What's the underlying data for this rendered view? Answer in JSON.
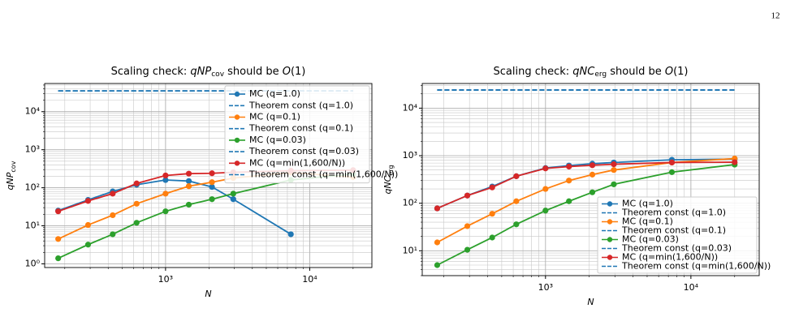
{
  "page_number": "12",
  "chart_data": [
    {
      "type": "line",
      "title_parts": [
        "Scaling check: ",
        "qNP",
        "cov",
        " should be ",
        "O",
        "(1)"
      ],
      "xlabel": "N",
      "ylabel_parts": [
        "qNP",
        "cov"
      ],
      "log": true,
      "grid": true,
      "legend": "upper right",
      "x": [
        180,
        290,
        430,
        630,
        1000,
        1450,
        2100,
        2950,
        7400,
        20000
      ],
      "xlim": [
        145,
        27000
      ],
      "xticks": [
        {
          "value": 1000,
          "label": "10³"
        },
        {
          "value": 10000,
          "label": "10⁴"
        }
      ],
      "xminor": [
        200,
        300,
        400,
        500,
        600,
        700,
        800,
        900,
        2000,
        3000,
        4000,
        5000,
        6000,
        7000,
        8000,
        9000,
        20000
      ],
      "ylim": [
        0.8,
        55000
      ],
      "yticks": [
        {
          "value": 1,
          "label": "10⁰"
        },
        {
          "value": 10,
          "label": "10¹"
        },
        {
          "value": 100,
          "label": "10²"
        },
        {
          "value": 1000,
          "label": "10³"
        },
        {
          "value": 10000,
          "label": "10⁴"
        }
      ],
      "yminor": [
        2,
        3,
        4,
        5,
        6,
        7,
        8,
        9,
        20,
        30,
        40,
        50,
        60,
        70,
        80,
        90,
        200,
        300,
        400,
        500,
        600,
        700,
        800,
        900,
        2000,
        3000,
        4000,
        5000,
        6000,
        7000,
        8000,
        9000,
        20000,
        30000,
        40000,
        50000
      ],
      "series": [
        {
          "name": "MC (q=1.0)",
          "color": "#1f77b4",
          "style": "solid",
          "values": [
            25,
            48,
            80,
            120,
            160,
            150,
            105,
            50,
            6,
            null
          ]
        },
        {
          "name": "Theorem const (q=1.0)",
          "color": "#1f77b4",
          "style": "dashed",
          "values": [
            35000,
            35000,
            35000,
            35000,
            35000,
            35000,
            35000,
            35000,
            35000,
            35000
          ]
        },
        {
          "name": "MC (q=0.1)",
          "color": "#ff7f0e",
          "style": "solid",
          "values": [
            4.5,
            10.5,
            19,
            38,
            70,
            110,
            140,
            180,
            250,
            190
          ]
        },
        {
          "name": "Theorem const (q=0.1)",
          "color": "#1f77b4",
          "style": "dashed",
          "values": [
            35000,
            35000,
            35000,
            35000,
            35000,
            35000,
            35000,
            35000,
            35000,
            35000
          ]
        },
        {
          "name": "MC (q=0.03)",
          "color": "#2ca02c",
          "style": "solid",
          "values": [
            1.4,
            3.2,
            6,
            12,
            24,
            36,
            50,
            70,
            160,
            230
          ]
        },
        {
          "name": "Theorem const (q=0.03)",
          "color": "#1f77b4",
          "style": "dashed",
          "values": [
            35000,
            35000,
            35000,
            35000,
            35000,
            35000,
            35000,
            35000,
            35000,
            35000
          ]
        },
        {
          "name": "MC (q=min(1,600/N))",
          "color": "#d62728",
          "style": "solid",
          "values": [
            24,
            45,
            70,
            130,
            210,
            235,
            240,
            255,
            280,
            290
          ]
        },
        {
          "name": "Theorem const (q=min(1,600/N))",
          "color": "#1f77b4",
          "style": "dashed",
          "values": [
            35000,
            35000,
            35000,
            35000,
            35000,
            35000,
            35000,
            35000,
            35000,
            35000
          ]
        }
      ]
    },
    {
      "type": "line",
      "title_parts": [
        "Scaling check: ",
        "qNC",
        "erg",
        " should be ",
        "O",
        "(1)"
      ],
      "xlabel": "N",
      "ylabel_parts": [
        "qNC",
        "erg"
      ],
      "log": true,
      "grid": true,
      "legend": "lower right",
      "x": [
        180,
        290,
        430,
        630,
        1000,
        1450,
        2100,
        2950,
        7400,
        20000
      ],
      "xlim": [
        142,
        29500
      ],
      "xticks": [
        {
          "value": 1000,
          "label": "10³"
        },
        {
          "value": 10000,
          "label": "10⁴"
        }
      ],
      "xminor": [
        200,
        300,
        400,
        500,
        600,
        700,
        800,
        900,
        2000,
        3000,
        4000,
        5000,
        6000,
        7000,
        8000,
        9000,
        20000
      ],
      "ylim": [
        3,
        33000
      ],
      "yticks": [
        {
          "value": 10,
          "label": "10¹"
        },
        {
          "value": 100,
          "label": "10²"
        },
        {
          "value": 1000,
          "label": "10³"
        },
        {
          "value": 10000,
          "label": "10⁴"
        }
      ],
      "yminor": [
        3,
        4,
        5,
        6,
        7,
        8,
        9,
        20,
        30,
        40,
        50,
        60,
        70,
        80,
        90,
        200,
        300,
        400,
        500,
        600,
        700,
        800,
        900,
        2000,
        3000,
        4000,
        5000,
        6000,
        7000,
        8000,
        9000,
        20000,
        30000
      ],
      "series": [
        {
          "name": "MC (q=1.0)",
          "color": "#1f77b4",
          "style": "solid",
          "values": [
            78,
            145,
            225,
            370,
            550,
            620,
            680,
            720,
            820,
            850
          ]
        },
        {
          "name": "Theorem const (q=1.0)",
          "color": "#1f77b4",
          "style": "dashed",
          "values": [
            24000,
            24000,
            24000,
            24000,
            24000,
            24000,
            24000,
            24000,
            24000,
            24000
          ]
        },
        {
          "name": "MC (q=0.1)",
          "color": "#ff7f0e",
          "style": "solid",
          "values": [
            15,
            33,
            60,
            110,
            200,
            300,
            400,
            500,
            720,
            870
          ]
        },
        {
          "name": "Theorem const (q=0.1)",
          "color": "#1f77b4",
          "style": "dashed",
          "values": [
            24000,
            24000,
            24000,
            24000,
            24000,
            24000,
            24000,
            24000,
            24000,
            24000
          ]
        },
        {
          "name": "MC (q=0.03)",
          "color": "#2ca02c",
          "style": "solid",
          "values": [
            5,
            10.5,
            19,
            36,
            70,
            110,
            170,
            250,
            450,
            650
          ]
        },
        {
          "name": "Theorem const (q=0.03)",
          "color": "#1f77b4",
          "style": "dashed",
          "values": [
            24000,
            24000,
            24000,
            24000,
            24000,
            24000,
            24000,
            24000,
            24000,
            24000
          ]
        },
        {
          "name": "MC (q=min(1,600/N))",
          "color": "#d62728",
          "style": "solid",
          "values": [
            78,
            145,
            215,
            370,
            540,
            590,
            630,
            660,
            720,
            730
          ]
        },
        {
          "name": "Theorem const (q=min(1,600/N))",
          "color": "#1f77b4",
          "style": "dashed",
          "values": [
            24000,
            24000,
            24000,
            24000,
            24000,
            24000,
            24000,
            24000,
            24000,
            24000
          ]
        }
      ]
    }
  ]
}
